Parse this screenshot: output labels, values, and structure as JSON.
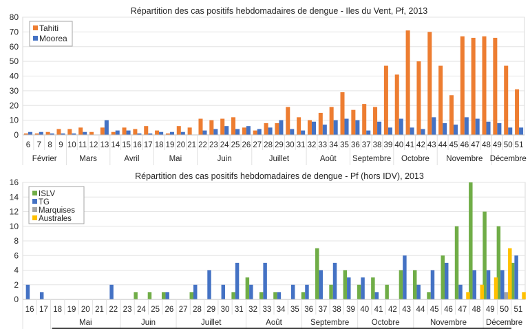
{
  "chart_data": [
    {
      "type": "bar",
      "title": "Répartition des cas positifs hebdomadaires de dengue - Iles du Vent, Pf, 2013",
      "xlabel": "",
      "ylabel": "",
      "ylim": [
        0,
        80
      ],
      "yticks": [
        0,
        10,
        20,
        30,
        40,
        50,
        60,
        70,
        80
      ],
      "grid": true,
      "legend": "top-left",
      "categories": [
        "6",
        "7",
        "8",
        "9",
        "10",
        "11",
        "12",
        "13",
        "14",
        "15",
        "16",
        "17",
        "18",
        "19",
        "20",
        "21",
        "22",
        "23",
        "24",
        "25",
        "26",
        "27",
        "28",
        "29",
        "30",
        "31",
        "32",
        "33",
        "34",
        "35",
        "36",
        "37",
        "38",
        "39",
        "40",
        "41",
        "42",
        "43",
        "44",
        "45",
        "46",
        "47",
        "48",
        "49",
        "50",
        "51"
      ],
      "months": [
        {
          "label": "Février",
          "span": 4
        },
        {
          "label": "Mars",
          "span": 4
        },
        {
          "label": "Avril",
          "span": 4
        },
        {
          "label": "Mai",
          "span": 4
        },
        {
          "label": "Juin",
          "span": 5
        },
        {
          "label": "Juillet",
          "span": 5
        },
        {
          "label": "Août",
          "span": 4
        },
        {
          "label": "Septembre",
          "span": 4
        },
        {
          "label": "Octobre",
          "span": 4
        },
        {
          "label": "Novembre",
          "span": 5
        },
        {
          "label": "Décembre",
          "span": 3
        }
      ],
      "series": [
        {
          "name": "Tahiti",
          "color": "#ED7D31",
          "values": [
            1,
            1,
            2,
            4,
            4,
            5,
            2,
            5,
            2,
            5,
            4,
            6,
            3,
            1,
            6,
            5,
            11,
            10,
            11,
            12,
            5,
            3,
            8,
            8,
            19,
            12,
            10,
            15,
            19,
            29,
            17,
            21,
            19,
            47,
            41,
            71,
            50,
            70,
            47,
            27,
            67,
            66,
            67,
            66,
            47,
            31
          ]
        },
        {
          "name": "Moorea",
          "color": "#4472C4",
          "values": [
            2,
            2,
            1,
            1,
            1,
            2,
            0,
            10,
            3,
            3,
            1,
            1,
            2,
            2,
            2,
            0,
            3,
            4,
            6,
            4,
            6,
            4,
            5,
            10,
            4,
            3,
            9,
            7,
            10,
            11,
            10,
            3,
            9,
            5,
            11,
            5,
            4,
            12,
            8,
            7,
            12,
            11,
            9,
            8,
            5,
            5
          ]
        }
      ]
    },
    {
      "type": "bar",
      "title": "Répartition des cas positifs hebdomadaires de dengue - Pf (hors IDV), 2013",
      "xlabel": "",
      "ylabel": "",
      "ylim": [
        0,
        16
      ],
      "yticks": [
        0,
        2,
        4,
        6,
        8,
        10,
        12,
        14,
        16
      ],
      "grid": true,
      "legend": "top-left",
      "categories": [
        "16",
        "17",
        "18",
        "19",
        "20",
        "21",
        "22",
        "23",
        "24",
        "25",
        "26",
        "27",
        "28",
        "29",
        "30",
        "31",
        "32",
        "33",
        "34",
        "35",
        "36",
        "37",
        "38",
        "39",
        "40",
        "41",
        "42",
        "43",
        "44",
        "45",
        "46",
        "47",
        "48",
        "49",
        "50",
        "51"
      ],
      "months": [
        {
          "label": "",
          "span": 2
        },
        {
          "label": "Mai",
          "span": 5
        },
        {
          "label": "Juin",
          "span": 4
        },
        {
          "label": "Juillet",
          "span": 5
        },
        {
          "label": "Août",
          "span": 4
        },
        {
          "label": "Septembre",
          "span": 4
        },
        {
          "label": "Octobre",
          "span": 4
        },
        {
          "label": "Novembre",
          "span": 5
        },
        {
          "label": "Décembre",
          "span": 3
        }
      ],
      "series": [
        {
          "name": "ISLV",
          "color": "#70AD47",
          "values": [
            0,
            0,
            0,
            0,
            0,
            0,
            0,
            0,
            1,
            1,
            1,
            0,
            1,
            0,
            0,
            1,
            3,
            1,
            1,
            0,
            1,
            7,
            2,
            4,
            2,
            3,
            2,
            4,
            4,
            1,
            6,
            10,
            16,
            12,
            10,
            5
          ]
        },
        {
          "name": "TG",
          "color": "#4472C4",
          "values": [
            2,
            1,
            0,
            0,
            0,
            0,
            2,
            0,
            0,
            0,
            1,
            0,
            2,
            4,
            2,
            5,
            2,
            5,
            1,
            2,
            2,
            4,
            5,
            3,
            3,
            1,
            0,
            6,
            2,
            4,
            5,
            2,
            4,
            4,
            4,
            6
          ]
        },
        {
          "name": "Marquises",
          "color": "#A5A5A5",
          "values": [
            0,
            0,
            0,
            0,
            0,
            0,
            0,
            0,
            0,
            0,
            0,
            0,
            0,
            0,
            0,
            0,
            0,
            0,
            0,
            0,
            0,
            0,
            0,
            0,
            0,
            0,
            0,
            0,
            0,
            0,
            0,
            0,
            0,
            0,
            1,
            0
          ]
        },
        {
          "name": "Australes",
          "color": "#FFC000",
          "values": [
            0,
            0,
            0,
            0,
            0,
            0,
            0,
            0,
            0,
            0,
            0,
            0,
            0,
            0,
            0,
            0,
            0,
            0,
            0,
            0,
            0,
            0,
            0,
            0,
            0,
            0,
            0,
            0,
            0,
            0,
            0,
            1,
            2,
            3,
            7,
            1
          ]
        }
      ]
    }
  ]
}
